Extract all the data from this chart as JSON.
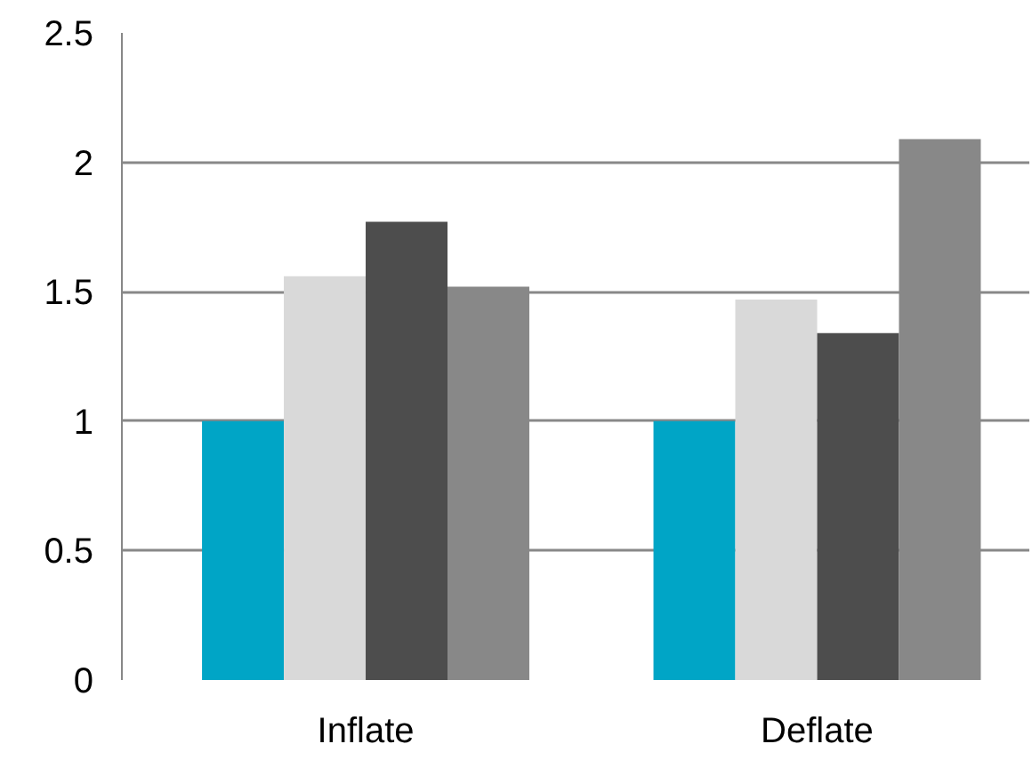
{
  "chart_data": {
    "type": "bar",
    "categories": [
      "Inflate",
      "Deflate"
    ],
    "series": [
      {
        "color": "#00a5c6",
        "values": [
          1.0,
          1.0
        ]
      },
      {
        "color": "#d9d9d9",
        "values": [
          1.56,
          1.47
        ]
      },
      {
        "color": "#4d4d4d",
        "values": [
          1.77,
          1.34
        ]
      },
      {
        "color": "#888888",
        "values": [
          1.52,
          2.09
        ]
      }
    ],
    "ylim": [
      0,
      2.5
    ],
    "yticks": [
      0,
      0.5,
      1,
      1.5,
      2,
      2.5
    ],
    "grid": "y"
  }
}
